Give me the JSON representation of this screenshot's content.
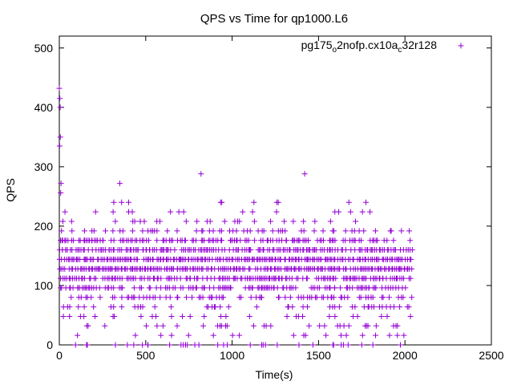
{
  "chart_data": {
    "type": "scatter",
    "title": "QPS vs Time for qp1000.L6",
    "xlabel": "Time(s)",
    "ylabel": "QPS",
    "xlim": [
      0,
      2500
    ],
    "ylim": [
      0,
      520
    ],
    "xticks": [
      "0",
      "500",
      "1000",
      "1500",
      "2000",
      "2500"
    ],
    "yticks": [
      "0",
      "100",
      "200",
      "300",
      "400",
      "500"
    ],
    "marker": "+",
    "color": "#9400d3",
    "grid": false,
    "legend_position": "top-right",
    "series": [
      {
        "name": "pg175_o2nofp.cx10a_c32r128",
        "name_parts": [
          "pg175",
          "o",
          "2nofp.cx10a",
          "c",
          "32r128"
        ],
        "levels": [
          0,
          16,
          32,
          48,
          64,
          80,
          96,
          112,
          128,
          144,
          160,
          176,
          192,
          208,
          224,
          240
        ],
        "x_range": [
          0,
          2040
        ],
        "outliers": [
          {
            "x": 0,
            "y": 432
          },
          {
            "x": 3,
            "y": 415
          },
          {
            "x": 5,
            "y": 400
          },
          {
            "x": 6,
            "y": 350
          },
          {
            "x": 2,
            "y": 335
          },
          {
            "x": 10,
            "y": 272
          },
          {
            "x": 8,
            "y": 256
          },
          {
            "x": 820,
            "y": 288
          },
          {
            "x": 1420,
            "y": 288
          },
          {
            "x": 350,
            "y": 272
          },
          {
            "x": 940,
            "y": 240
          }
        ]
      }
    ]
  }
}
